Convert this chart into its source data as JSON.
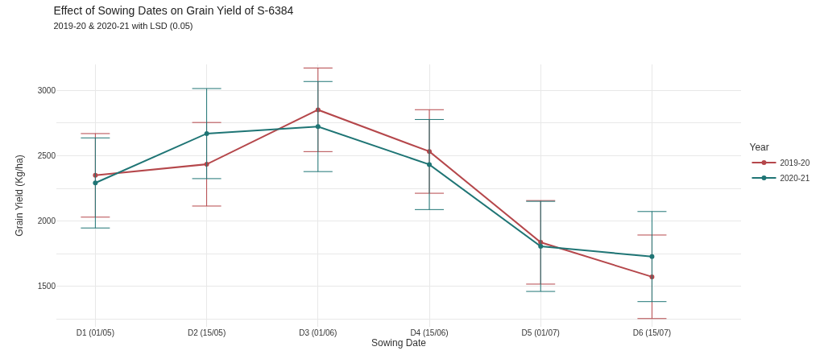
{
  "chart_data": {
    "type": "line",
    "title": "Effect of Sowing Dates on Grain Yield of S-6384",
    "subtitle": "2019-20 & 2020-21 with LSD (0.05)",
    "xlabel": "Sowing Date",
    "ylabel": "Grain Yield (Kg/ha)",
    "legend_title": "Year",
    "categories": [
      "D1 (01/05)",
      "D2 (15/05)",
      "D3 (01/06)",
      "D4 (15/06)",
      "D5 (01/07)",
      "D6 (15/07)"
    ],
    "series": [
      {
        "name": "2019-20",
        "color": "#b5474b",
        "values": [
          2350,
          2435,
          2852,
          2533,
          1837,
          1573
        ],
        "errors": [
          320,
          320,
          320,
          320,
          320,
          320
        ]
      },
      {
        "name": "2020-21",
        "color": "#1f7575",
        "values": [
          2292,
          2670,
          2724,
          2433,
          1806,
          1728
        ],
        "errors": [
          345,
          345,
          345,
          345,
          345,
          345
        ]
      }
    ],
    "ylim": [
      1190,
      3200
    ],
    "yticks": [
      {
        "value": 1250,
        "label": null
      },
      1500,
      {
        "value": 1750,
        "label": null
      },
      2000,
      {
        "value": 2250,
        "label": null
      },
      2500,
      {
        "value": 2750,
        "label": null
      },
      3000
    ],
    "grid": true,
    "legend": "right",
    "marker": "circle",
    "line_style": "solid"
  }
}
